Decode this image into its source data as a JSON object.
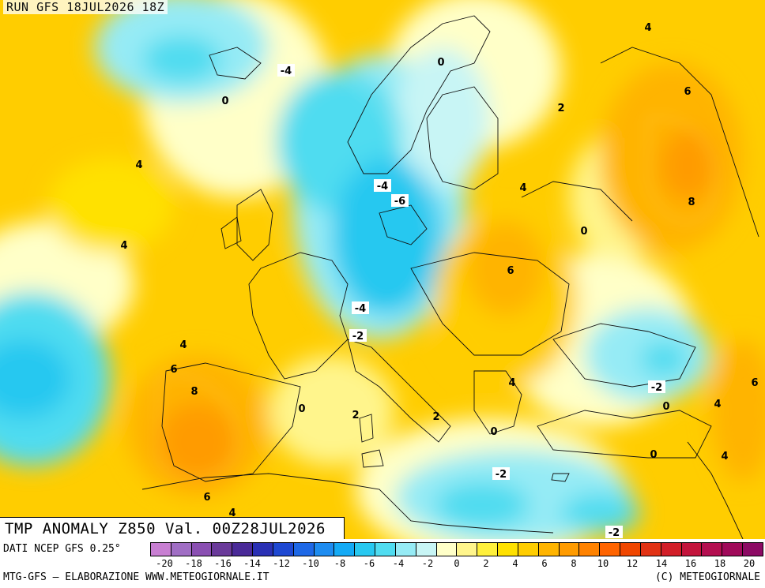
{
  "header": {
    "run_label": "RUN GFS 18JUL2026 18Z"
  },
  "map": {
    "variable_title": "TMP ANOMALY Z850 Val. 00Z28JUL2026",
    "contour_labels": [
      "-4",
      "0",
      "4",
      "4",
      "4",
      "6",
      "8",
      "-4",
      "-6",
      "-4",
      "-2",
      "0",
      "2",
      "2",
      "0",
      "-2",
      "-2",
      "0",
      "2",
      "4",
      "6",
      "0",
      "4",
      "8",
      "6",
      "4",
      "-2",
      "0",
      "4",
      "6",
      "0",
      "4",
      "6",
      "4"
    ],
    "colors": {
      "cold": "#00b4ff",
      "neutral": "#ffffc8",
      "warm": "#ff9600",
      "hot": "#f05a00",
      "border_lines": "#000000"
    }
  },
  "legend": {
    "source_text": "DATI NCEP GFS 0.25°",
    "tick_labels": [
      "-20",
      "-18",
      "-16",
      "-14",
      "-12",
      "-10",
      "-8",
      "-6",
      "-4",
      "-2",
      "0",
      "2",
      "4",
      "6",
      "8",
      "10",
      "12",
      "14",
      "16",
      "18",
      "20"
    ],
    "scale_colors": [
      "#c87fd2",
      "#a06ec4",
      "#8a4fb2",
      "#6a3a9a",
      "#4a2a98",
      "#2a30b4",
      "#1e48d2",
      "#1e68e6",
      "#1e8cf0",
      "#14aaf5",
      "#28c8f0",
      "#50dcf0",
      "#96ebf5",
      "#c8f5f5",
      "#ffffc8",
      "#fff58c",
      "#fff03c",
      "#ffe100",
      "#ffcd00",
      "#ffb400",
      "#ff9b00",
      "#ff8200",
      "#ff6400",
      "#f04600",
      "#e13214",
      "#d21e28",
      "#c3143c",
      "#b40f50",
      "#a00a5a",
      "#8c0a64"
    ],
    "credit_text": "MTG-GFS — ELABORAZIONE WWW.METEOGIORNALE.IT",
    "copyright_text": "(C) METEOGIORNALE"
  }
}
